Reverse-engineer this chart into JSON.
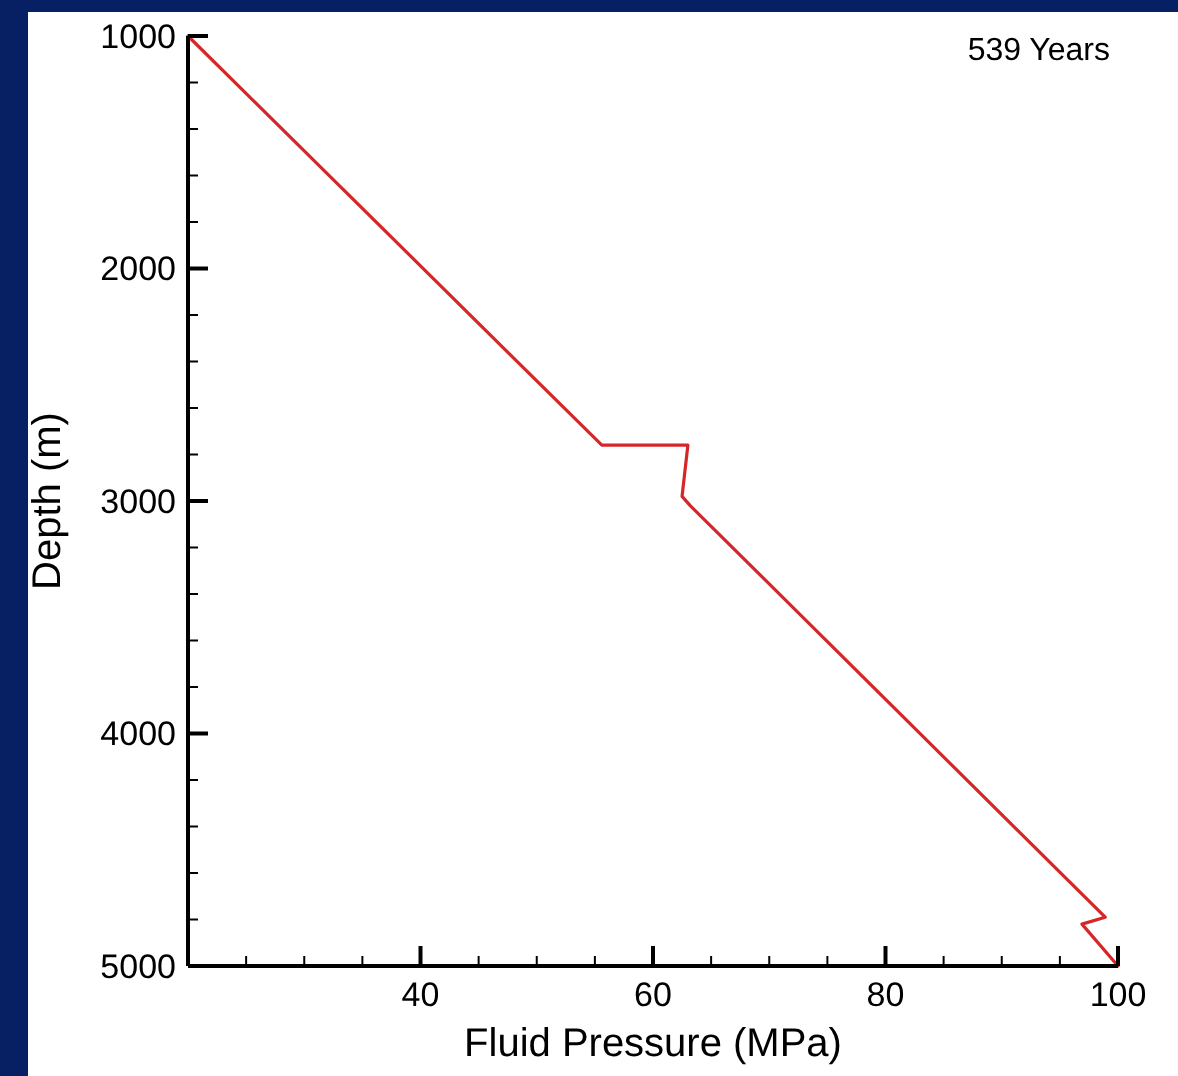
{
  "chart_data": {
    "type": "line",
    "xlabel": "Fluid Pressure (MPa)",
    "ylabel": "Depth (m)",
    "annotations": [
      "539 Years"
    ],
    "x": [
      20,
      55.6,
      63.0,
      62.5,
      63.2,
      98.9,
      96.9,
      100
    ],
    "series": [
      {
        "color": "#d62728",
        "values": [
          1000,
          2760,
          2760,
          2980,
          3020,
          4790,
          4820,
          5000
        ]
      }
    ],
    "xlim": [
      20,
      100
    ],
    "ylim": [
      5000,
      1000
    ],
    "xticks": [
      {
        "value": 20,
        "label": null
      },
      {
        "value": 25,
        "label": null
      },
      {
        "value": 30,
        "label": null
      },
      {
        "value": 35,
        "label": null
      },
      40,
      {
        "value": 45,
        "label": null
      },
      {
        "value": 50,
        "label": null
      },
      {
        "value": 55,
        "label": null
      },
      60,
      {
        "value": 65,
        "label": null
      },
      {
        "value": 70,
        "label": null
      },
      {
        "value": 75,
        "label": null
      },
      80,
      {
        "value": 85,
        "label": null
      },
      {
        "value": 90,
        "label": null
      },
      {
        "value": 95,
        "label": null
      },
      100
    ],
    "yticks": [
      1000,
      {
        "value": 1200,
        "label": null
      },
      {
        "value": 1400,
        "label": null
      },
      {
        "value": 1600,
        "label": null
      },
      {
        "value": 1800,
        "label": null
      },
      2000,
      {
        "value": 2200,
        "label": null
      },
      {
        "value": 2400,
        "label": null
      },
      {
        "value": 2600,
        "label": null
      },
      {
        "value": 2800,
        "label": null
      },
      3000,
      {
        "value": 3200,
        "label": null
      },
      {
        "value": 3400,
        "label": null
      },
      {
        "value": 3600,
        "label": null
      },
      {
        "value": 3800,
        "label": null
      },
      4000,
      {
        "value": 4200,
        "label": null
      },
      {
        "value": 4400,
        "label": null
      },
      {
        "value": 4600,
        "label": null
      },
      {
        "value": 4800,
        "label": null
      },
      5000
    ],
    "grid": false,
    "marker": "none",
    "line_style": "solid"
  }
}
